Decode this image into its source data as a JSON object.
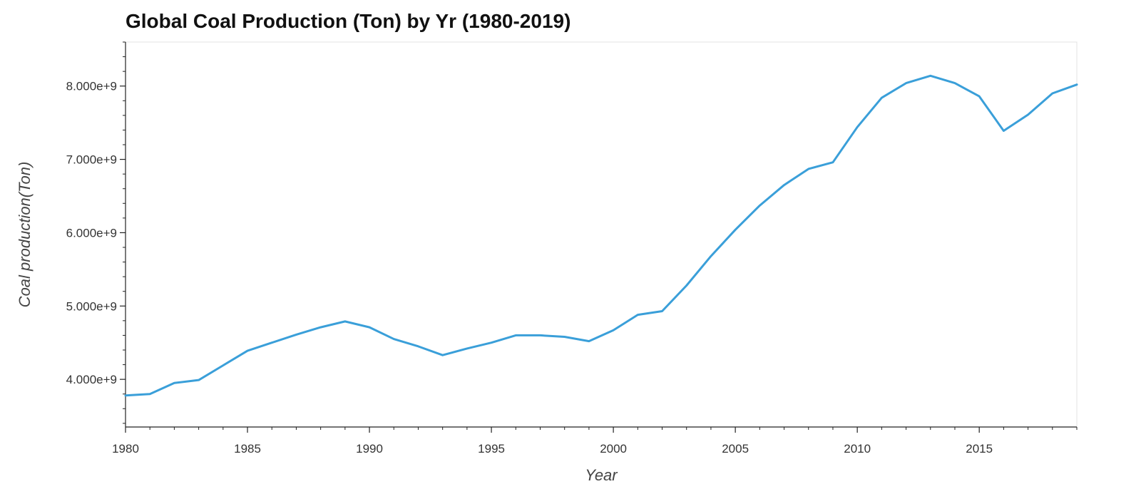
{
  "chart_data": {
    "type": "line",
    "title": "Global Coal Production (Ton) by Yr (1980-2019)",
    "xlabel": "Year",
    "ylabel": "Coal production(Ton)",
    "xlim": [
      1980,
      2019
    ],
    "ylim": [
      3350000000,
      8600000000
    ],
    "x_ticks": [
      1980,
      1985,
      1990,
      1995,
      2000,
      2005,
      2010,
      2015
    ],
    "x_tick_labels": [
      "1980",
      "1985",
      "1990",
      "1995",
      "2000",
      "2005",
      "2010",
      "2015"
    ],
    "y_ticks": [
      4000000000,
      5000000000,
      6000000000,
      7000000000,
      8000000000
    ],
    "y_tick_labels": [
      "4.000e+9",
      "5.000e+9",
      "6.000e+9",
      "7.000e+9",
      "8.000e+9"
    ],
    "grid": false,
    "line_color": "#3a9fd9",
    "series": [
      {
        "x": [
          1980,
          1981,
          1982,
          1983,
          1984,
          1985,
          1986,
          1987,
          1988,
          1989,
          1990,
          1991,
          1992,
          1993,
          1994,
          1995,
          1996,
          1997,
          1998,
          1999,
          2000,
          2001,
          2002,
          2003,
          2004,
          2005,
          2006,
          2007,
          2008,
          2009,
          2010,
          2011,
          2012,
          2013,
          2014,
          2015,
          2016,
          2017,
          2018,
          2019
        ],
        "values": [
          3780000000,
          3800000000,
          3950000000,
          3990000000,
          4190000000,
          4390000000,
          4500000000,
          4610000000,
          4710000000,
          4790000000,
          4710000000,
          4550000000,
          4450000000,
          4330000000,
          4420000000,
          4500000000,
          4600000000,
          4600000000,
          4580000000,
          4520000000,
          4670000000,
          4880000000,
          4930000000,
          5280000000,
          5680000000,
          6040000000,
          6370000000,
          6650000000,
          6870000000,
          6960000000,
          7440000000,
          7840000000,
          8040000000,
          8140000000,
          8040000000,
          7860000000,
          7390000000,
          7610000000,
          7900000000,
          8020000000
        ]
      }
    ]
  }
}
